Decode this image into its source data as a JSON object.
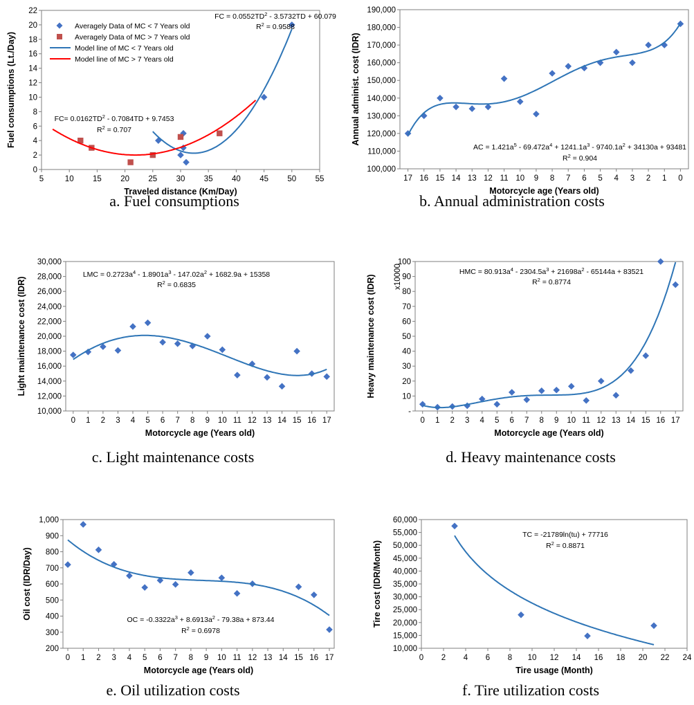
{
  "chart_data": [
    {
      "id": "a",
      "type": "scatter",
      "caption": "a. Fuel consumptions",
      "xlabel": "Traveled distance (Km/Day)",
      "ylabel": "Fuel consumptions (Lt./Day)",
      "xlim": [
        5,
        55
      ],
      "ylim": [
        0,
        22
      ],
      "xticks": [
        5,
        10,
        15,
        20,
        25,
        30,
        35,
        40,
        45,
        50,
        55
      ],
      "yticks": [
        0,
        2,
        4,
        6,
        8,
        10,
        12,
        14,
        16,
        18,
        20,
        22
      ],
      "series": [
        {
          "name": "Averagely Data of MC < 7 Years old",
          "kind": "points",
          "marker": "diamond",
          "color": "#4472c4",
          "x": [
            26,
            30,
            30.5,
            30.5,
            31,
            45,
            50
          ],
          "y": [
            4,
            2,
            3,
            5,
            1,
            10,
            20
          ]
        },
        {
          "name": "Averagely Data of MC > 7 Years old",
          "kind": "points",
          "marker": "square",
          "color": "#c0504d",
          "x": [
            12,
            14,
            21,
            25,
            30,
            37
          ],
          "y": [
            4,
            3,
            1,
            2,
            4.5,
            5
          ]
        },
        {
          "name": "Model line of MC < 7 Years old",
          "kind": "poly",
          "color": "#2e75b6",
          "coef": [
            60.079,
            -3.5732,
            0.0552
          ],
          "xrange": [
            25,
            50
          ]
        },
        {
          "name": "Model line of MC > 7 Years old",
          "kind": "poly",
          "color": "#ff0000",
          "coef": [
            9.7453,
            -0.7084,
            0.0162
          ],
          "xrange": [
            7,
            43.5
          ]
        }
      ],
      "legend_position": "top-left",
      "annotations": [
        {
          "lines": [
            "FC = 0.0552TD² - 3.5732TD + 60.079",
            "R² = 0.9588"
          ]
        },
        {
          "lines": [
            "FC= 0.0162TD² - 0.7084TD + 9.7453",
            "R² = 0.707"
          ]
        }
      ]
    },
    {
      "id": "b",
      "type": "scatter",
      "caption": "b. Annual administration costs",
      "xlabel": "Motorcycle age (Years old)",
      "ylabel": "Annual administ. cost (IDR)",
      "xcats": [
        17,
        16,
        15,
        14,
        13,
        12,
        11,
        10,
        9,
        8,
        7,
        6,
        5,
        4,
        3,
        2,
        1,
        0
      ],
      "ylim": [
        100000,
        190000
      ],
      "yticks": [
        "100,000",
        "110,000",
        "120,000",
        "130,000",
        "140,000",
        "150,000",
        "160,000",
        "170,000",
        "180,000",
        "190,000"
      ],
      "series": [
        {
          "kind": "points",
          "marker": "diamond",
          "color": "#4472c4",
          "x": [
            1,
            2,
            3,
            4,
            5,
            6,
            7,
            8,
            9,
            10,
            11,
            12,
            13,
            14,
            15,
            16,
            17,
            18
          ],
          "y": [
            120000,
            130000,
            140000,
            135000,
            134000,
            135000,
            151000,
            138000,
            131000,
            154000,
            158000,
            157000,
            160000,
            166000,
            160000,
            170000,
            170000,
            182000
          ]
        },
        {
          "kind": "poly",
          "color": "#2e75b6",
          "coef": [
            93481,
            34130,
            -9740.1,
            1241.1,
            -69.472,
            1.421
          ],
          "xrange": [
            1,
            18
          ]
        }
      ],
      "annotations": [
        {
          "lines": [
            "AC = 1.421a⁵ - 69.472a⁴ + 1241.1a³ - 9740.1a² + 34130a + 93481",
            "R² = 0.904"
          ]
        }
      ]
    },
    {
      "id": "c",
      "type": "scatter",
      "caption": "c. Light maintenance costs",
      "xlabel": "Motorcycle age (Years old)",
      "ylabel": "Light maintenance cost (IDR)",
      "xcats": [
        0,
        1,
        2,
        3,
        4,
        5,
        6,
        7,
        8,
        9,
        10,
        11,
        12,
        13,
        14,
        15,
        16,
        17
      ],
      "ylim": [
        10000,
        30000
      ],
      "yticks": [
        "10,000",
        "12,000",
        "14,000",
        "16,000",
        "18,000",
        "20,000",
        "22,000",
        "24,000",
        "26,000",
        "28,000",
        "30,000"
      ],
      "series": [
        {
          "kind": "points",
          "marker": "diamond",
          "color": "#4472c4",
          "x": [
            1,
            2,
            3,
            4,
            5,
            6,
            7,
            8,
            9,
            10,
            11,
            12,
            13,
            14,
            15,
            16,
            17,
            18
          ],
          "y": [
            17500,
            17900,
            18600,
            18100,
            21300,
            21800,
            19200,
            19000,
            18700,
            20000,
            18200,
            14800,
            16300,
            14500,
            13300,
            18000,
            15000,
            14600
          ]
        },
        {
          "kind": "poly",
          "color": "#2e75b6",
          "coef": [
            15358,
            1682.9,
            -147.02,
            -1.8901,
            0.2723
          ],
          "xrange": [
            1,
            18
          ]
        }
      ],
      "annotations": [
        {
          "lines": [
            "LMC = 0.2723a⁴ - 1.8901a³ - 147.02a² + 1682.9a + 15358",
            "R² = 0.6835"
          ]
        }
      ]
    },
    {
      "id": "d",
      "type": "scatter",
      "caption": "d. Heavy maintenance costs",
      "xlabel": "Motorcycle age (Years old)",
      "ylabel": "Heavy maintenance cost (IDR)",
      "yunit": "x10000",
      "xcats": [
        0,
        1,
        2,
        3,
        4,
        5,
        6,
        7,
        8,
        9,
        10,
        11,
        12,
        13,
        14,
        15,
        16,
        17
      ],
      "ylim": [
        0,
        100
      ],
      "yticks": [
        "-",
        "10",
        "20",
        "30",
        "40",
        "50",
        "60",
        "70",
        "80",
        "90",
        "100"
      ],
      "series": [
        {
          "kind": "points",
          "marker": "diamond",
          "color": "#4472c4",
          "x": [
            1,
            2,
            3,
            4,
            5,
            6,
            7,
            8,
            9,
            10,
            11,
            12,
            13,
            14,
            15,
            16,
            17,
            18
          ],
          "y": [
            4.5,
            2.5,
            3,
            3.5,
            8,
            4.5,
            12.5,
            7.5,
            13.5,
            14,
            16.5,
            7,
            20,
            10.5,
            27,
            37,
            100,
            84.5
          ]
        },
        {
          "kind": "poly",
          "color": "#2e75b6",
          "scale": 0.0001,
          "coef": [
            83521,
            -65144,
            21698,
            -2304.5,
            80.913
          ],
          "xrange": [
            1,
            18
          ]
        }
      ],
      "annotations": [
        {
          "lines": [
            "HMC = 80.913a⁴ - 2304.5a³ + 21698a² - 65144a + 83521",
            "R² = 0.8774"
          ]
        }
      ]
    },
    {
      "id": "e",
      "type": "scatter",
      "caption": "e. Oil utilization costs",
      "xlabel": "Motorcycle age (Years old)",
      "ylabel": "Oil cost (IDR/Day)",
      "xcats": [
        0,
        1,
        2,
        3,
        4,
        5,
        6,
        7,
        8,
        9,
        10,
        11,
        12,
        13,
        14,
        15,
        16,
        17
      ],
      "ylim": [
        200,
        1000
      ],
      "yticks": [
        "200",
        "300",
        "400",
        "500",
        "600",
        "700",
        "800",
        "900",
        "1,000"
      ],
      "series": [
        {
          "kind": "points",
          "marker": "diamond",
          "color": "#4472c4",
          "x": [
            0,
            1,
            2,
            3,
            4,
            5,
            6,
            7,
            8,
            10,
            11,
            12,
            15,
            16,
            17
          ],
          "y": [
            720,
            970,
            812,
            722,
            651,
            578,
            622,
            597,
            670,
            638,
            541,
            601,
            582,
            532,
            316
          ]
        },
        {
          "kind": "poly",
          "color": "#2e75b6",
          "coef": [
            873.44,
            -79.38,
            8.6913,
            -0.3322
          ],
          "xrange": [
            0,
            17
          ]
        }
      ],
      "annotations": [
        {
          "lines": [
            "OC = -0.3322a³ + 8.6913a² - 79.38a + 873.44",
            "R² = 0.6978"
          ]
        }
      ]
    },
    {
      "id": "f",
      "type": "scatter",
      "caption": "f. Tire utilization costs",
      "xlabel": "Tire usage (Month)",
      "ylabel": "Tire cost (IDR/Month)",
      "xlim": [
        0,
        24
      ],
      "xticks": [
        0,
        2,
        4,
        6,
        8,
        10,
        12,
        14,
        16,
        18,
        20,
        22,
        24
      ],
      "ylim": [
        10000,
        60000
      ],
      "yticks": [
        "10,000",
        "15,000",
        "20,000",
        "25,000",
        "30,000",
        "35,000",
        "40,000",
        "45,000",
        "50,000",
        "55,000",
        "60,000"
      ],
      "series": [
        {
          "kind": "points",
          "marker": "diamond",
          "color": "#4472c4",
          "x": [
            3,
            9,
            15,
            21
          ],
          "y": [
            57500,
            23000,
            14800,
            18800
          ]
        },
        {
          "kind": "log",
          "color": "#2e75b6",
          "a": -21789,
          "b": 77716,
          "xrange": [
            3,
            21
          ]
        }
      ],
      "annotations": [
        {
          "lines": [
            "TC = -21789ln(tu) + 77716",
            "R² = 0.8871"
          ]
        }
      ]
    }
  ]
}
